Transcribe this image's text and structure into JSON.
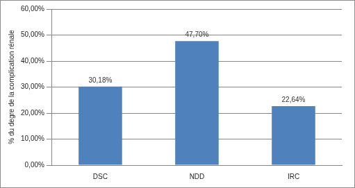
{
  "chart_data": {
    "type": "bar",
    "categories": [
      "DSC",
      "NDD",
      "IRC"
    ],
    "values": [
      30.18,
      47.7,
      22.64
    ],
    "value_labels": [
      "30,18%",
      "47,70%",
      "22,64%"
    ],
    "data_labels": true,
    "color": "#4f81bd",
    "y_label": "% du degre de la complication rénale",
    "ylim": [
      0,
      60
    ],
    "yticks": [
      {
        "value": 0,
        "label": "0,00%"
      },
      {
        "value": 10,
        "label": "10,00%"
      },
      {
        "value": 20,
        "label": "20,00%"
      },
      {
        "value": 30,
        "label": "30,00%"
      },
      {
        "value": 40,
        "label": "40,00%"
      },
      {
        "value": 50,
        "label": "50,00%"
      },
      {
        "value": 60,
        "label": "60,00%"
      }
    ],
    "grid": true
  }
}
